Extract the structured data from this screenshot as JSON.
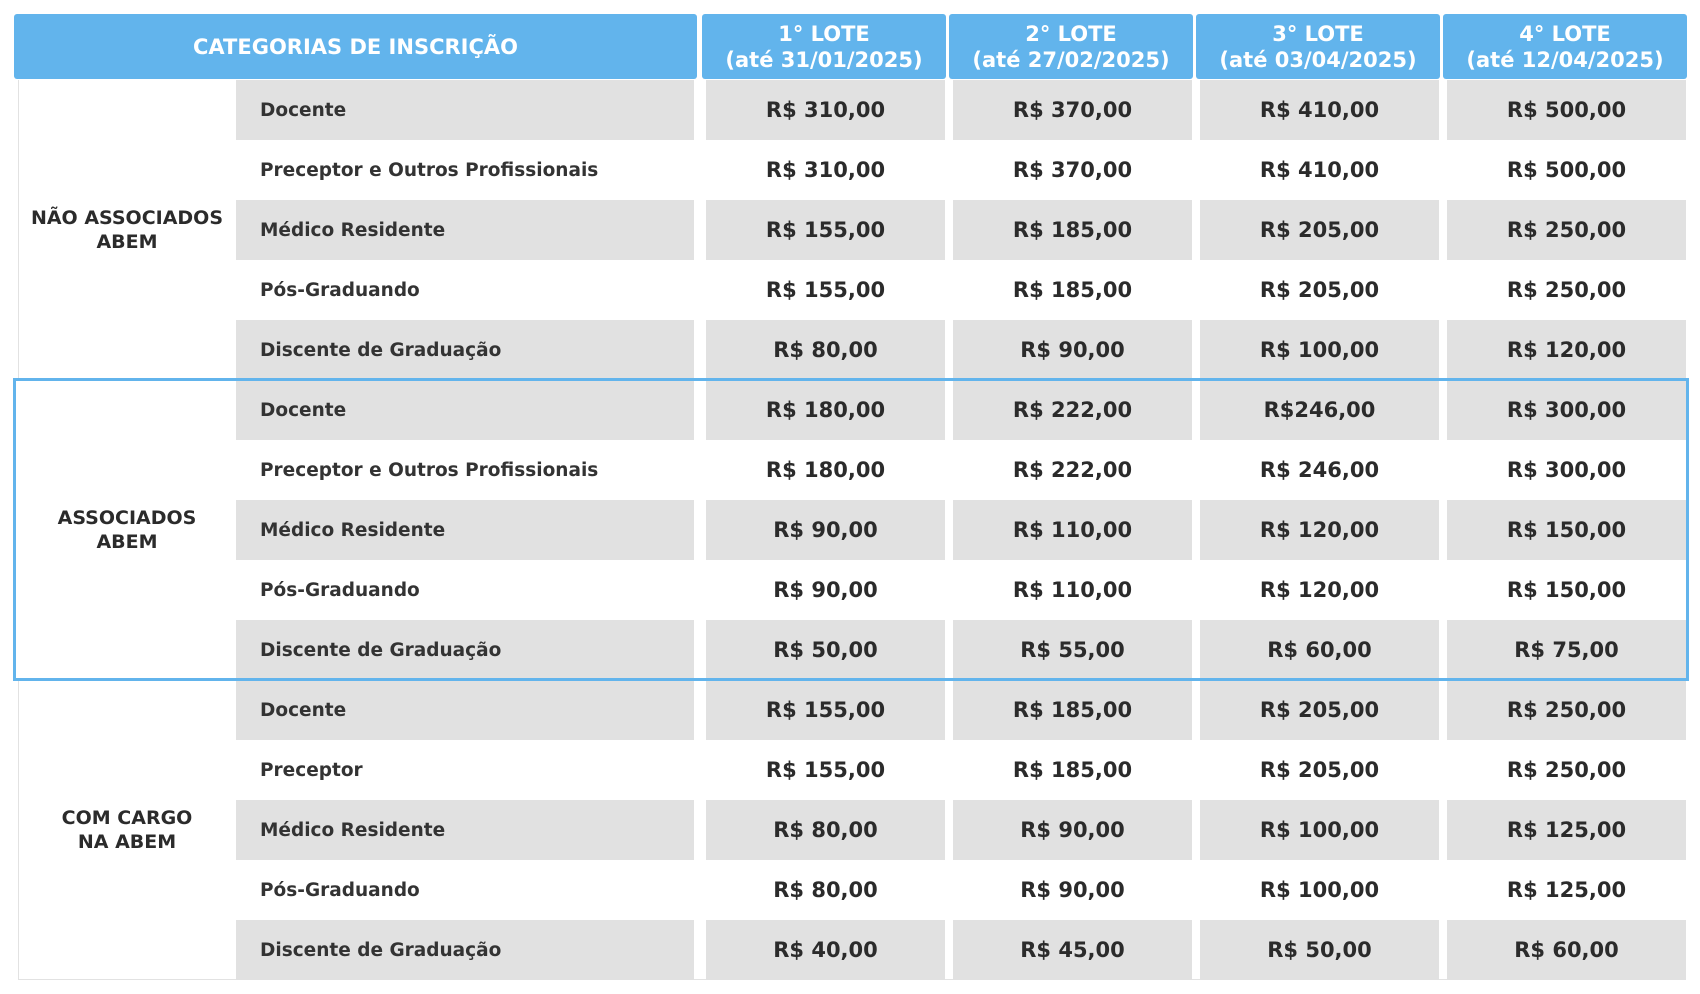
{
  "header": {
    "categories_label": "CATEGORIAS DE INSCRIÇÃO",
    "lots": [
      {
        "name": "1° LOTE",
        "date": "(até 31/01/2025)"
      },
      {
        "name": "2° LOTE",
        "date": "(até 27/02/2025)"
      },
      {
        "name": "3° LOTE",
        "date": "(até 03/04/2025)"
      },
      {
        "name": "4° LOTE",
        "date": "(até 12/04/2025)"
      }
    ]
  },
  "accent_color": "#62b4ec",
  "groups": [
    {
      "label_line1": "NÃO ASSOCIADOS",
      "label_line2": "ABEM",
      "rows": [
        {
          "category": "Docente",
          "prices": [
            "R$ 310,00",
            "R$ 370,00",
            "R$ 410,00",
            "R$ 500,00"
          ]
        },
        {
          "category": "Preceptor e Outros Profissionais",
          "prices": [
            "R$ 310,00",
            "R$ 370,00",
            "R$ 410,00",
            "R$ 500,00"
          ]
        },
        {
          "category": "Médico Residente",
          "prices": [
            "R$ 155,00",
            "R$ 185,00",
            "R$ 205,00",
            "R$ 250,00"
          ]
        },
        {
          "category": "Pós-Graduando",
          "prices": [
            "R$ 155,00",
            "R$ 185,00",
            "R$ 205,00",
            "R$ 250,00"
          ]
        },
        {
          "category": "Discente de Graduação",
          "prices": [
            "R$ 80,00",
            "R$ 90,00",
            "R$ 100,00",
            "R$ 120,00"
          ]
        }
      ]
    },
    {
      "label_line1": "ASSOCIADOS",
      "label_line2": "ABEM",
      "rows": [
        {
          "category": "Docente",
          "prices": [
            "R$ 180,00",
            "R$ 222,00",
            "R$246,00",
            "R$ 300,00"
          ]
        },
        {
          "category": "Preceptor e Outros Profissionais",
          "prices": [
            "R$ 180,00",
            "R$ 222,00",
            "R$ 246,00",
            "R$ 300,00"
          ]
        },
        {
          "category": "Médico Residente",
          "prices": [
            "R$ 90,00",
            "R$ 110,00",
            "R$ 120,00",
            "R$ 150,00"
          ]
        },
        {
          "category": "Pós-Graduando",
          "prices": [
            "R$ 90,00",
            "R$ 110,00",
            "R$ 120,00",
            "R$ 150,00"
          ]
        },
        {
          "category": "Discente de Graduação",
          "prices": [
            "R$ 50,00",
            "R$ 55,00",
            "R$ 60,00",
            "R$ 75,00"
          ]
        }
      ]
    },
    {
      "label_line1": "COM CARGO",
      "label_line2": "NA ABEM",
      "rows": [
        {
          "category": "Docente",
          "prices": [
            "R$ 155,00",
            "R$ 185,00",
            "R$ 205,00",
            "R$ 250,00"
          ]
        },
        {
          "category": "Preceptor",
          "prices": [
            "R$ 155,00",
            "R$ 185,00",
            "R$ 205,00",
            "R$ 250,00"
          ]
        },
        {
          "category": "Médico Residente",
          "prices": [
            "R$ 80,00",
            "R$ 90,00",
            "R$ 100,00",
            "R$ 125,00"
          ]
        },
        {
          "category": "Pós-Graduando",
          "prices": [
            "R$ 80,00",
            "R$ 90,00",
            "R$ 100,00",
            "R$ 125,00"
          ]
        },
        {
          "category": "Discente de Graduação",
          "prices": [
            "R$ 40,00",
            "R$ 45,00",
            "R$ 50,00",
            "R$ 60,00"
          ]
        }
      ]
    }
  ]
}
